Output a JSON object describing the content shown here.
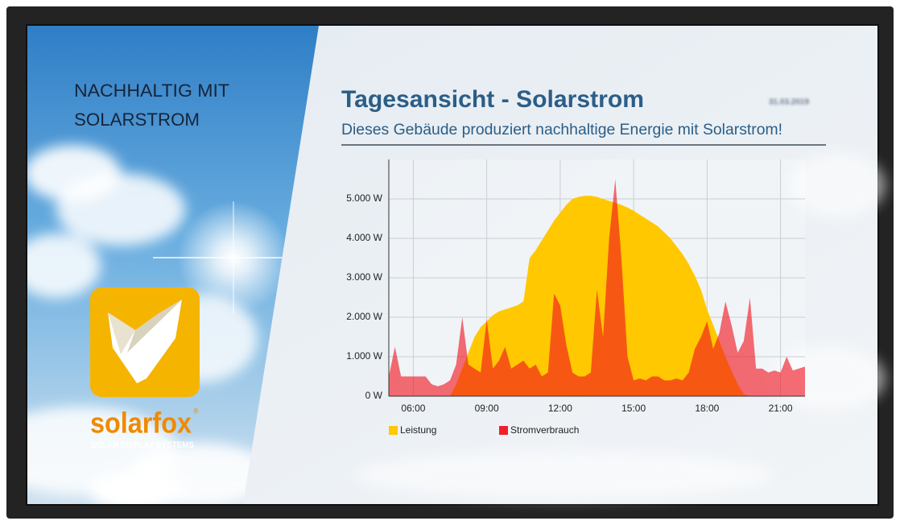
{
  "screen": {
    "left_heading_lines": [
      "NACHHALTIG MIT",
      "SOLARSTROM"
    ],
    "logo": {
      "brand": "solarfox",
      "registered": "®",
      "tagline": "SOLAR DISPLAY SYSTEMS"
    }
  },
  "header": {
    "title": "Tagesansicht - Solarstrom",
    "subtitle": "Dieses Gebäude produziert nachhaltige Energie mit Solarstrom!",
    "date": "31.03.2019"
  },
  "chart_data": {
    "type": "area",
    "x": [
      5,
      5.25,
      5.5,
      5.75,
      6,
      6.25,
      6.5,
      6.75,
      7,
      7.25,
      7.5,
      7.75,
      8,
      8.25,
      8.5,
      8.75,
      9,
      9.25,
      9.5,
      9.75,
      10,
      10.25,
      10.5,
      10.75,
      11,
      11.25,
      11.5,
      11.75,
      12,
      12.25,
      12.5,
      12.75,
      13,
      13.25,
      13.5,
      13.75,
      14,
      14.25,
      14.5,
      14.75,
      15,
      15.25,
      15.5,
      15.75,
      16,
      16.25,
      16.5,
      16.75,
      17,
      17.25,
      17.5,
      17.75,
      18,
      18.25,
      18.5,
      18.75,
      19,
      19.25,
      19.5,
      19.75,
      20,
      20.25,
      20.5,
      20.75,
      21,
      21.25,
      21.5,
      21.75,
      22
    ],
    "series": [
      {
        "name": "Leistung",
        "color": "#ffc800",
        "opacity": 1,
        "values": [
          0,
          0,
          0,
          0,
          0,
          0,
          0,
          0,
          0,
          0,
          0,
          300,
          700,
          1100,
          1500,
          1750,
          1900,
          2050,
          2150,
          2200,
          2250,
          2300,
          2400,
          3500,
          3700,
          3950,
          4200,
          4450,
          4650,
          4850,
          5000,
          5050,
          5080,
          5080,
          5050,
          5000,
          4950,
          4900,
          4850,
          4780,
          4700,
          4600,
          4500,
          4400,
          4300,
          4150,
          4000,
          3800,
          3600,
          3350,
          3050,
          2700,
          2200,
          1800,
          1400,
          1000,
          650,
          300,
          50,
          0,
          0,
          0,
          0,
          0,
          0,
          0,
          0,
          0,
          0
        ]
      },
      {
        "name": "Stromverbrauch",
        "color": "#f0141e",
        "opacity": 0.62,
        "values": [
          500,
          1250,
          500,
          500,
          500,
          500,
          500,
          300,
          250,
          300,
          400,
          800,
          2000,
          800,
          700,
          600,
          1950,
          700,
          900,
          1250,
          700,
          800,
          900,
          700,
          800,
          500,
          600,
          2600,
          2300,
          1300,
          600,
          500,
          500,
          600,
          2700,
          1500,
          4000,
          5500,
          3500,
          1000,
          400,
          450,
          400,
          500,
          500,
          400,
          400,
          450,
          400,
          600,
          1200,
          1500,
          1900,
          1200,
          1600,
          2400,
          1800,
          1100,
          1400,
          2500,
          700,
          700,
          600,
          650,
          600,
          1000,
          650,
          700,
          750
        ]
      }
    ],
    "xlim": [
      5,
      22
    ],
    "xticks": [
      {
        "value": 6,
        "label": "06:00"
      },
      {
        "value": 9,
        "label": "09:00"
      },
      {
        "value": 12,
        "label": "12:00"
      },
      {
        "value": 15,
        "label": "15:00"
      },
      {
        "value": 18,
        "label": "18:00"
      },
      {
        "value": 21,
        "label": "21:00"
      }
    ],
    "ylim": [
      0,
      6000
    ],
    "yticks": [
      {
        "value": 0,
        "label": "0 W"
      },
      {
        "value": 1000,
        "label": "1.000 W"
      },
      {
        "value": 2000,
        "label": "2.000 W"
      },
      {
        "value": 3000,
        "label": "3.000 W"
      },
      {
        "value": 4000,
        "label": "4.000 W"
      },
      {
        "value": 5000,
        "label": "5.000 W"
      }
    ],
    "grid": true,
    "legend": "bottom-left"
  }
}
